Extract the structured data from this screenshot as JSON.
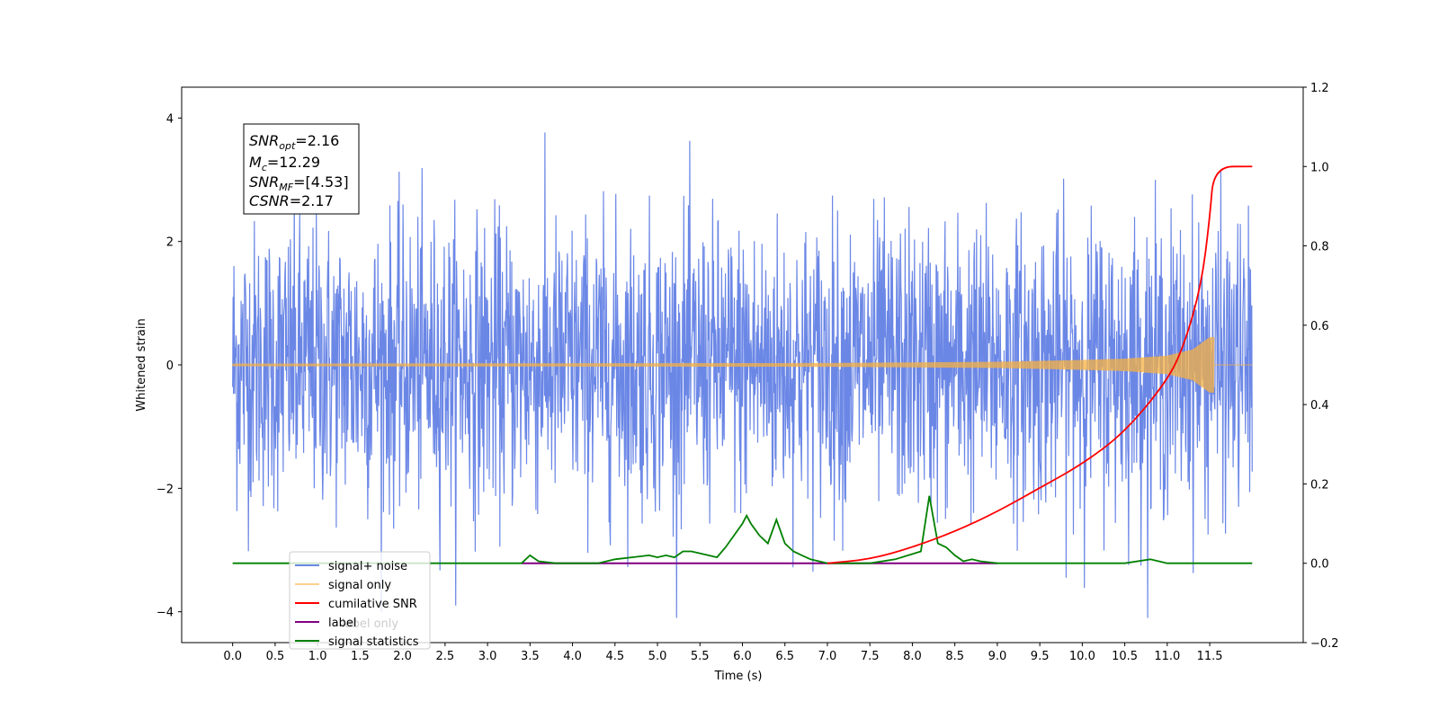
{
  "chart_data": {
    "type": "line",
    "xlabel": "Time (s)",
    "ylabel": "Whitened strain",
    "xlim": [
      -0.6,
      12.6
    ],
    "ylim": [
      -4.5,
      4.5
    ],
    "y2lim": [
      -0.2,
      1.2
    ],
    "x_ticks": [
      "0.0",
      "0.5",
      "1.0",
      "1.5",
      "2.0",
      "2.5",
      "3.0",
      "3.5",
      "4.0",
      "4.5",
      "5.0",
      "5.5",
      "6.0",
      "6.5",
      "7.0",
      "7.5",
      "8.0",
      "8.5",
      "9.0",
      "9.5",
      "10.0",
      "10.5",
      "11.0",
      "11.5"
    ],
    "y_ticks": [
      "−4",
      "−2",
      "0",
      "2",
      "4"
    ],
    "y2_ticks": [
      "−0.2",
      "0.0",
      "0.2",
      "0.4",
      "0.6",
      "0.8",
      "1.0",
      "1.2"
    ],
    "grid": false,
    "legend_position": "lower-left",
    "annotation": {
      "snr_opt": "2.16",
      "mc": "12.29",
      "snr_mf": "[4.53]",
      "csnr": "2.17"
    },
    "series": [
      {
        "name": "signal+ noise",
        "color": "#6b87e6",
        "axis": "left",
        "description_values": {
          "x_range": [
            0.0,
            12.0
          ],
          "typical_amplitude": 2.2,
          "max": 4.1,
          "min": -4.1
        }
      },
      {
        "name": "signal only",
        "color": "#f5b041",
        "axis": "left",
        "x_end": 11.55,
        "envelope": [
          [
            0.0,
            0.02
          ],
          [
            7.0,
            0.03
          ],
          [
            9.0,
            0.05
          ],
          [
            10.0,
            0.08
          ],
          [
            10.5,
            0.1
          ],
          [
            11.0,
            0.15
          ],
          [
            11.3,
            0.25
          ],
          [
            11.5,
            0.45
          ],
          [
            11.55,
            0.45
          ]
        ]
      },
      {
        "name": "cumilative SNR",
        "color": "#ff0000",
        "axis": "right",
        "x": [
          7.0,
          7.5,
          8.0,
          8.5,
          9.0,
          9.5,
          10.0,
          10.5,
          11.0,
          11.2,
          11.4,
          11.5,
          11.55,
          12.0
        ],
        "y": [
          0.0,
          0.01,
          0.04,
          0.08,
          0.13,
          0.19,
          0.25,
          0.33,
          0.46,
          0.55,
          0.7,
          0.87,
          1.0,
          1.0
        ]
      },
      {
        "name": "label only",
        "color": "#ffffff",
        "axis": "right"
      },
      {
        "name": "label",
        "color": "#800080",
        "axis": "right",
        "x": [
          3.4,
          9.0
        ],
        "y": [
          0.0,
          0.0
        ]
      },
      {
        "name": "signal statistics",
        "color": "#008000",
        "axis": "right",
        "x": [
          0.0,
          3.4,
          3.5,
          3.6,
          3.8,
          4.0,
          4.3,
          4.5,
          4.7,
          4.9,
          5.0,
          5.1,
          5.2,
          5.3,
          5.4,
          5.6,
          5.7,
          5.8,
          6.0,
          6.05,
          6.1,
          6.2,
          6.3,
          6.4,
          6.5,
          6.6,
          6.7,
          6.8,
          7.0,
          7.3,
          7.5,
          7.8,
          7.95,
          8.1,
          8.2,
          8.3,
          8.4,
          8.5,
          8.6,
          8.7,
          8.8,
          9.0,
          9.5,
          10.5,
          10.8,
          11.0,
          12.0
        ],
        "y": [
          0.0,
          0.0,
          0.02,
          0.005,
          0.0,
          0.0,
          0.0,
          0.01,
          0.015,
          0.02,
          0.015,
          0.02,
          0.015,
          0.03,
          0.03,
          0.02,
          0.015,
          0.04,
          0.1,
          0.12,
          0.1,
          0.07,
          0.05,
          0.11,
          0.05,
          0.03,
          0.02,
          0.01,
          0.0,
          0.0,
          0.0,
          0.01,
          0.02,
          0.03,
          0.17,
          0.05,
          0.04,
          0.02,
          0.005,
          0.01,
          0.005,
          0.0,
          0.0,
          0.0,
          0.01,
          0.0,
          0.0
        ]
      }
    ]
  }
}
